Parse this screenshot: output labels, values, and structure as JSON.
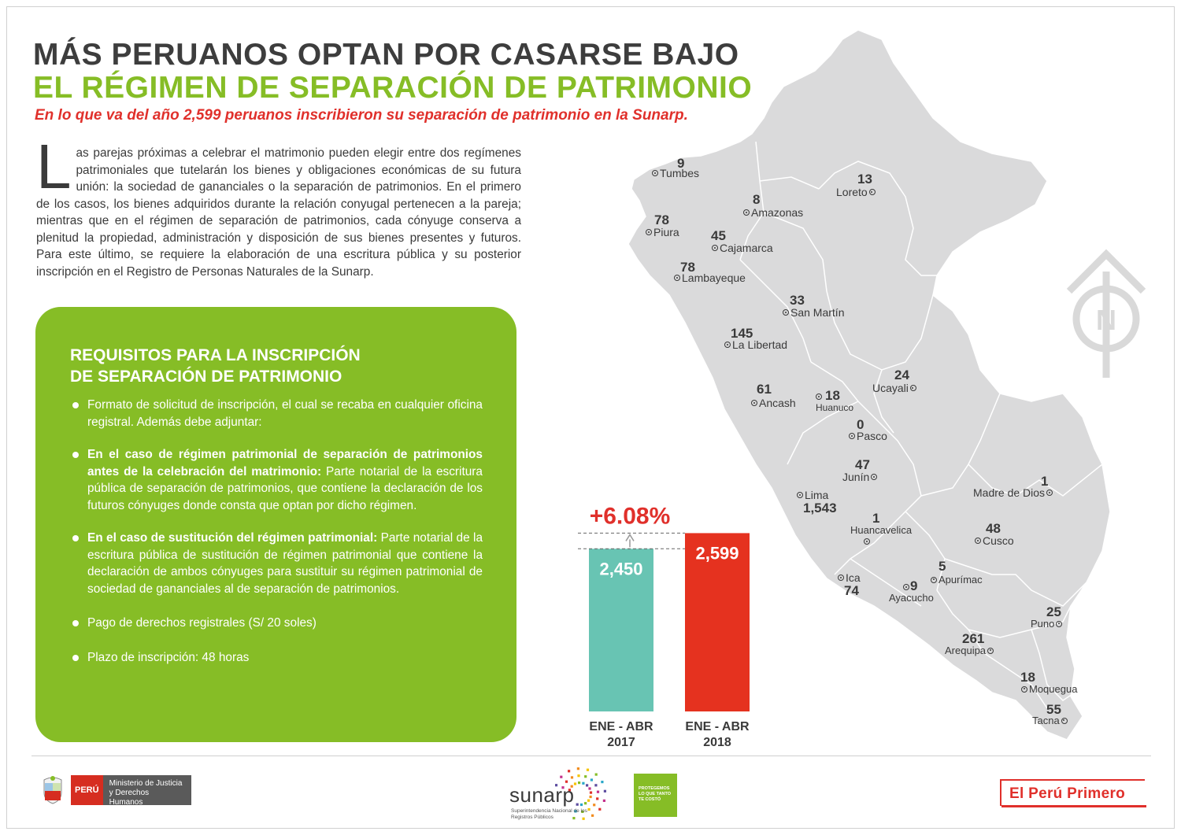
{
  "header": {
    "title_line1": "MÁS PERUANOS OPTAN POR CASARSE BAJO",
    "title_line2": "EL RÉGIMEN DE SEPARACIÓN DE PATRIMONIO",
    "subtitle": "En lo que va del año 2,599 peruanos inscribieron su separación de patrimonio en la Sunarp."
  },
  "intro": {
    "dropcap": "L",
    "text": "as parejas próximas a celebrar el matrimonio pueden elegir entre dos regímenes patrimoniales que tutelarán los bienes y obligaciones económicas de su futura unión: la sociedad de gananciales o la separación de patrimonios. En el primero de los casos, los bienes adquiridos durante la relación conyugal pertenecen a la pareja; mientras que en el régimen de separación de patrimonios, cada cónyuge conserva a plenitud la propiedad, administración y disposición de sus bienes presentes y futuros. Para este último, se requiere la elaboración de una escritura pública y su posterior inscripción en el Registro de Personas Naturales de la Sunarp."
  },
  "requirements": {
    "title_line1": "REQUISITOS PARA LA INSCRIPCIÓN",
    "title_line2": "DE SEPARACIÓN DE PATRIMONIO",
    "items": [
      {
        "lead": "",
        "text": "Formato de solicitud de inscripción, el cual se recaba en cualquier oficina registral. Además debe adjuntar:"
      },
      {
        "lead": "En el caso de régimen patrimonial de separación de patrimonios antes de la celebración del matrimonio:",
        "text": " Parte notarial de la escritura pública de separación de patrimonios, que contiene la declaración de los futuros cónyuges donde consta que optan por dicho régimen."
      },
      {
        "lead": "En el caso de sustitución del régimen patrimonial:",
        "text": " Parte notarial de la escritura pública de sustitución de régimen patrimonial que contiene la declaración de ambos cónyuges para sustituir su régimen patrimonial de sociedad de gananciales al de separación de patrimonios."
      },
      {
        "lead": "",
        "text": "Pago de derechos registrales (S/ 20 soles)"
      },
      {
        "lead": "",
        "text": "Plazo de inscripción: 48 horas"
      }
    ]
  },
  "chart_data": {
    "type": "bar",
    "categories": [
      "ENE - ABR\n2017",
      "ENE - ABR\n2018"
    ],
    "category_lines": [
      [
        "ENE - ABR",
        "2017"
      ],
      [
        "ENE - ABR",
        "2018"
      ]
    ],
    "values": [
      2450,
      2599
    ],
    "value_labels": [
      "2,450",
      "2,599"
    ],
    "colors": [
      "#68c4b3",
      "#e5321f"
    ],
    "annotation": "+6.08%",
    "ylim": [
      0,
      2800
    ]
  },
  "map": {
    "departments": [
      {
        "name": "Tumbes",
        "count": "9"
      },
      {
        "name": "Loreto",
        "count": "13"
      },
      {
        "name": "Amazonas",
        "count": "8"
      },
      {
        "name": "Piura",
        "count": "78"
      },
      {
        "name": "Cajamarca",
        "count": "45"
      },
      {
        "name": "Lambayeque",
        "count": "78"
      },
      {
        "name": "San Martín",
        "count": "33"
      },
      {
        "name": "La Libertad",
        "count": "145"
      },
      {
        "name": "Ucayali",
        "count": "24"
      },
      {
        "name": "Ancash",
        "count": "61"
      },
      {
        "name": "Huanuco",
        "count": "18"
      },
      {
        "name": "Pasco",
        "count": "0"
      },
      {
        "name": "Junín",
        "count": "47"
      },
      {
        "name": "Madre de Dios",
        "count": "1"
      },
      {
        "name": "Lima",
        "count": "1,543"
      },
      {
        "name": "Huancavelica",
        "count": "1"
      },
      {
        "name": "Cusco",
        "count": "48"
      },
      {
        "name": "Apurímac",
        "count": "5"
      },
      {
        "name": "Ica",
        "count": "74"
      },
      {
        "name": "Ayacucho",
        "count": "9"
      },
      {
        "name": "Puno",
        "count": "25"
      },
      {
        "name": "Arequipa",
        "count": "261"
      },
      {
        "name": "Moquegua",
        "count": "18"
      },
      {
        "name": "Tacna",
        "count": "55"
      }
    ],
    "compass_letter": "N"
  },
  "footer": {
    "peru": "PERÚ",
    "ministry": "Ministerio de Justicia y Derechos Humanos",
    "sunarp": "sunarp",
    "sunarp_sub": "Superintendencia Nacional de los Registros Públicos",
    "protegemos": "PROTEGEMOS LO QUE TANTO TE COSTÓ",
    "el_peru_primero": "El Perú Primero"
  },
  "colors": {
    "green": "#86bd26",
    "red": "#e0302b",
    "teal": "#68c4b3",
    "map_fill": "#dadadb"
  }
}
